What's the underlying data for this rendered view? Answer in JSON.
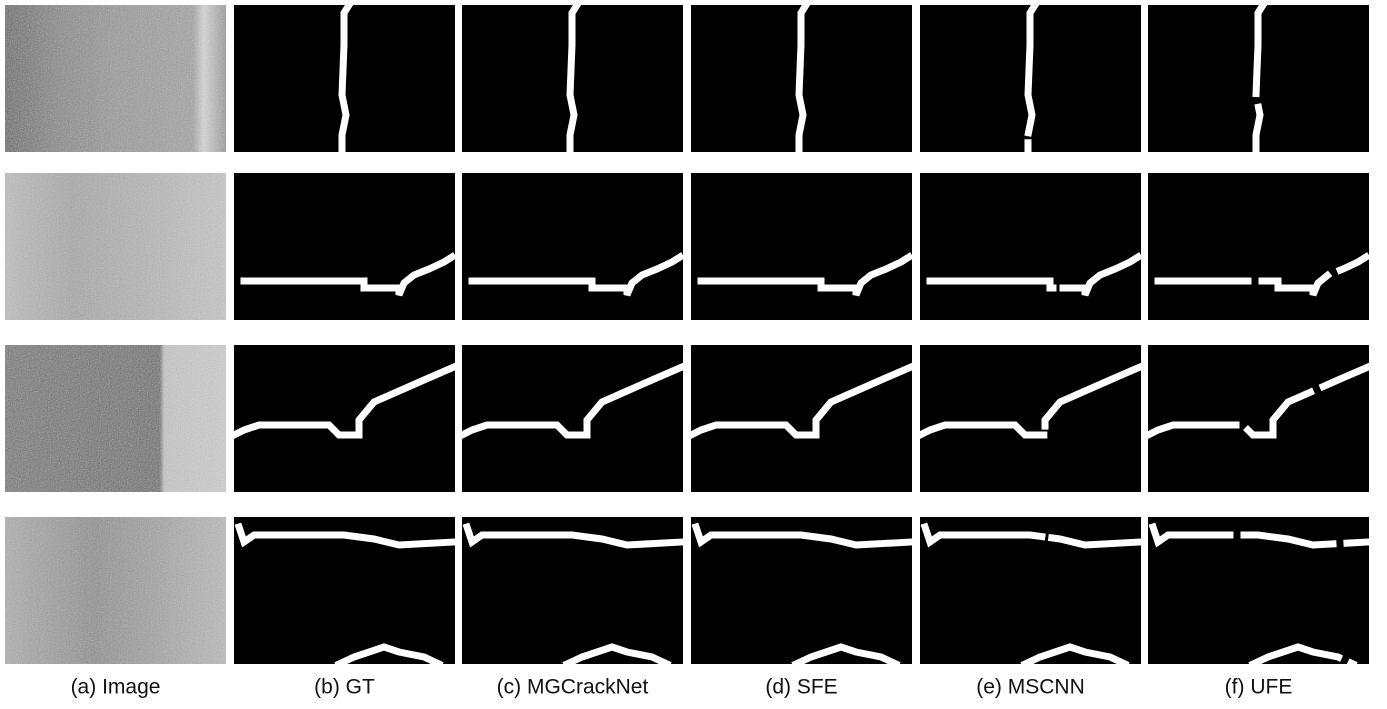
{
  "columns": [
    "(a) Image",
    "(b) GT",
    "(c) MGCrackNet",
    "(d) SFE",
    "(e) MSCNN",
    "(f) UFE"
  ]
}
